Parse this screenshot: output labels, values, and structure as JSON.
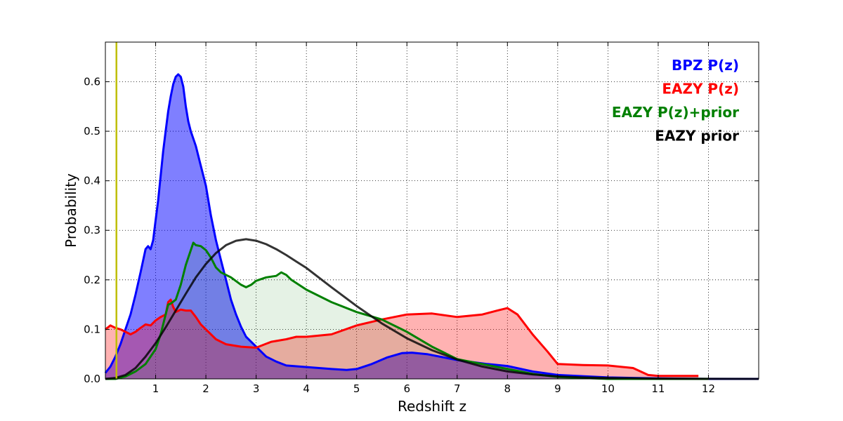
{
  "chart_data": {
    "type": "area",
    "title": "",
    "xlabel": "Redshift z",
    "ylabel": "Probability",
    "xlim": [
      0,
      13
    ],
    "ylim": [
      0,
      0.68
    ],
    "grid": true,
    "legend_position": "top-right",
    "x_ticks": [
      1,
      2,
      3,
      4,
      5,
      6,
      7,
      8,
      9,
      10,
      11,
      12
    ],
    "x_tick_labels": [
      "1",
      "2",
      "3",
      "4",
      "5",
      "6",
      "7",
      "8",
      "9",
      "10",
      "11",
      "12"
    ],
    "y_ticks": [
      0.0,
      0.1,
      0.2,
      0.3,
      0.4,
      0.5,
      0.6
    ],
    "y_tick_labels": [
      "0.0",
      "0.1",
      "0.2",
      "0.3",
      "0.4",
      "0.5",
      "0.6"
    ],
    "vertical_line": {
      "x": 0.22,
      "color": "#bfbf00"
    },
    "series": [
      {
        "name": "BPZ P(z)",
        "color": "#0000ff",
        "fill": "#0000ff",
        "fill_opacity": 0.5,
        "x": [
          0,
          0.1,
          0.2,
          0.3,
          0.4,
          0.5,
          0.6,
          0.7,
          0.8,
          0.85,
          0.9,
          0.95,
          1.0,
          1.05,
          1.1,
          1.15,
          1.2,
          1.25,
          1.3,
          1.35,
          1.4,
          1.45,
          1.5,
          1.55,
          1.6,
          1.65,
          1.7,
          1.8,
          1.9,
          2.0,
          2.1,
          2.2,
          2.3,
          2.4,
          2.5,
          2.6,
          2.7,
          2.8,
          3.0,
          3.2,
          3.4,
          3.6,
          4.0,
          4.5,
          4.8,
          5.0,
          5.3,
          5.6,
          5.9,
          6.1,
          6.4,
          6.7,
          7.0,
          7.3,
          7.6,
          8.0,
          8.5,
          9.0,
          10.0,
          11.0,
          12.0,
          13.0
        ],
        "y": [
          0.012,
          0.025,
          0.045,
          0.07,
          0.1,
          0.13,
          0.17,
          0.215,
          0.262,
          0.268,
          0.262,
          0.28,
          0.32,
          0.36,
          0.41,
          0.46,
          0.5,
          0.54,
          0.57,
          0.595,
          0.61,
          0.615,
          0.61,
          0.59,
          0.55,
          0.52,
          0.5,
          0.47,
          0.43,
          0.39,
          0.33,
          0.28,
          0.24,
          0.2,
          0.16,
          0.13,
          0.105,
          0.085,
          0.065,
          0.045,
          0.035,
          0.027,
          0.024,
          0.02,
          0.018,
          0.02,
          0.03,
          0.043,
          0.052,
          0.053,
          0.05,
          0.044,
          0.038,
          0.034,
          0.03,
          0.026,
          0.015,
          0.008,
          0.003,
          0.001,
          0.0,
          0.0
        ]
      },
      {
        "name": "EAZY P(z)",
        "color": "#ff0000",
        "fill": "#ff0000",
        "fill_opacity": 0.3,
        "x": [
          0,
          0.1,
          0.2,
          0.3,
          0.4,
          0.5,
          0.6,
          0.7,
          0.8,
          0.9,
          1.0,
          1.1,
          1.2,
          1.25,
          1.3,
          1.35,
          1.4,
          1.5,
          1.6,
          1.7,
          1.8,
          1.9,
          2.0,
          2.2,
          2.4,
          2.7,
          3.0,
          3.3,
          3.6,
          3.8,
          4.0,
          4.5,
          5.0,
          5.5,
          6.0,
          6.5,
          7.0,
          7.5,
          7.8,
          8.0,
          8.2,
          8.5,
          8.8,
          9.0,
          9.5,
          10.0,
          10.5,
          10.8,
          11.0,
          11.8
        ],
        "y": [
          0.1,
          0.108,
          0.103,
          0.1,
          0.095,
          0.09,
          0.095,
          0.103,
          0.11,
          0.108,
          0.118,
          0.125,
          0.13,
          0.155,
          0.16,
          0.145,
          0.135,
          0.14,
          0.138,
          0.138,
          0.125,
          0.11,
          0.1,
          0.08,
          0.07,
          0.065,
          0.063,
          0.075,
          0.08,
          0.085,
          0.085,
          0.09,
          0.108,
          0.12,
          0.13,
          0.132,
          0.125,
          0.13,
          0.138,
          0.143,
          0.13,
          0.09,
          0.055,
          0.03,
          0.028,
          0.027,
          0.022,
          0.008,
          0.006,
          0.006
        ]
      },
      {
        "name": "EAZY P(z)+prior",
        "color": "#008000",
        "fill": "#008000",
        "fill_opacity": 0.1,
        "x": [
          0,
          0.2,
          0.4,
          0.6,
          0.8,
          1.0,
          1.1,
          1.2,
          1.25,
          1.3,
          1.4,
          1.5,
          1.6,
          1.7,
          1.75,
          1.8,
          1.9,
          2.0,
          2.1,
          2.2,
          2.3,
          2.5,
          2.7,
          2.8,
          2.9,
          3.0,
          3.2,
          3.4,
          3.5,
          3.6,
          3.7,
          4.0,
          4.5,
          5.0,
          5.5,
          6.0,
          6.5,
          7.0,
          7.5,
          8.0,
          8.5,
          9.0,
          10.0,
          11.0,
          12.0
        ],
        "y": [
          0.0,
          0.0,
          0.005,
          0.015,
          0.03,
          0.06,
          0.09,
          0.13,
          0.15,
          0.152,
          0.16,
          0.19,
          0.23,
          0.26,
          0.275,
          0.27,
          0.268,
          0.26,
          0.245,
          0.225,
          0.215,
          0.205,
          0.19,
          0.185,
          0.19,
          0.198,
          0.205,
          0.208,
          0.215,
          0.21,
          0.2,
          0.18,
          0.155,
          0.135,
          0.12,
          0.095,
          0.065,
          0.04,
          0.03,
          0.02,
          0.01,
          0.004,
          0.0,
          0.0,
          0.0
        ]
      },
      {
        "name": "EAZY prior",
        "color": "#000000",
        "x": [
          0,
          0.2,
          0.4,
          0.6,
          0.8,
          1.0,
          1.2,
          1.4,
          1.6,
          1.8,
          2.0,
          2.2,
          2.4,
          2.6,
          2.8,
          3.0,
          3.2,
          3.4,
          3.6,
          3.8,
          4.0,
          4.5,
          5.0,
          5.5,
          6.0,
          6.5,
          7.0,
          7.5,
          8.0,
          8.5,
          9.0,
          9.5,
          10.0,
          11.0,
          12.0,
          13.0
        ],
        "y": [
          0.0,
          0.002,
          0.008,
          0.022,
          0.045,
          0.072,
          0.104,
          0.138,
          0.172,
          0.205,
          0.232,
          0.254,
          0.27,
          0.279,
          0.282,
          0.279,
          0.272,
          0.262,
          0.25,
          0.237,
          0.224,
          0.185,
          0.147,
          0.112,
          0.082,
          0.058,
          0.039,
          0.025,
          0.015,
          0.009,
          0.005,
          0.003,
          0.002,
          0.0005,
          0.0001,
          0.0
        ]
      }
    ]
  }
}
